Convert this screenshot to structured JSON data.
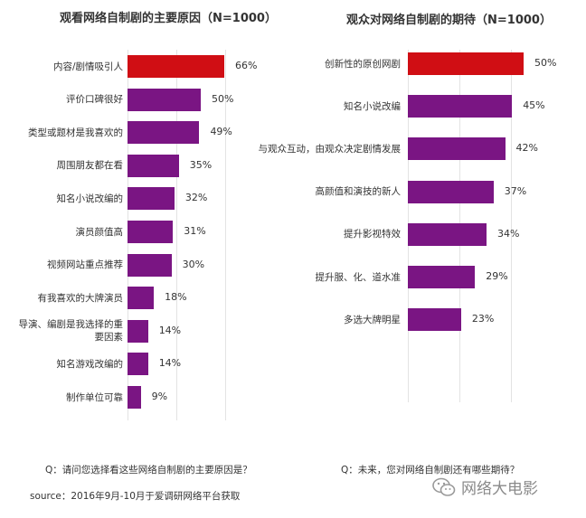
{
  "chart_data": [
    {
      "type": "bar",
      "orientation": "horizontal",
      "title": "观看网络自制剧的主要原因（N=1000）",
      "categories": [
        "内容/剧情吸引人",
        "评价口碑很好",
        "类型或题材是我喜欢的",
        "周围朋友都在看",
        "知名小说改编的",
        "演员颜值高",
        "视频网站重点推荐",
        "有我喜欢的大牌演员",
        "导演、编剧是我选择的重要因素",
        "知名游戏改编的",
        "制作单位可靠"
      ],
      "values": [
        66,
        50,
        49,
        35,
        32,
        31,
        30,
        18,
        14,
        14,
        9
      ],
      "value_labels": [
        "66%",
        "50%",
        "49%",
        "35%",
        "32%",
        "31%",
        "30%",
        "18%",
        "14%",
        "14%",
        "9%"
      ],
      "xlim": [
        0,
        70
      ],
      "grid": true,
      "question": "Q：请问您选择看这些网络自制剧的主要原因是？"
    },
    {
      "type": "bar",
      "orientation": "horizontal",
      "title": "观众对网络自制剧的期待（N=1000）",
      "categories": [
        "创新性的原创网剧",
        "知名小说改编",
        "与观众互动，由观众决定剧情发展",
        "高颜值和演技的新人",
        "提升影视特效",
        "提升服、化、道水准",
        "多选大牌明星"
      ],
      "values": [
        50,
        45,
        42,
        37,
        34,
        29,
        23
      ],
      "value_labels": [
        "50%",
        "45%",
        "42%",
        "37%",
        "34%",
        "29%",
        "23%"
      ],
      "xlim": [
        0,
        55
      ],
      "grid": true,
      "question": "Q：未来，您对网络自制剧还有哪些期待？"
    }
  ],
  "colors": {
    "highlight": "#d00e14",
    "bar": "#7a1583",
    "grid": "#e3e3e3"
  },
  "footer": {
    "source": "source：2016年9月-10月于爱调研网络平台获取",
    "watermark": "网络大电影",
    "watermark_icon": "wechat-icon"
  }
}
